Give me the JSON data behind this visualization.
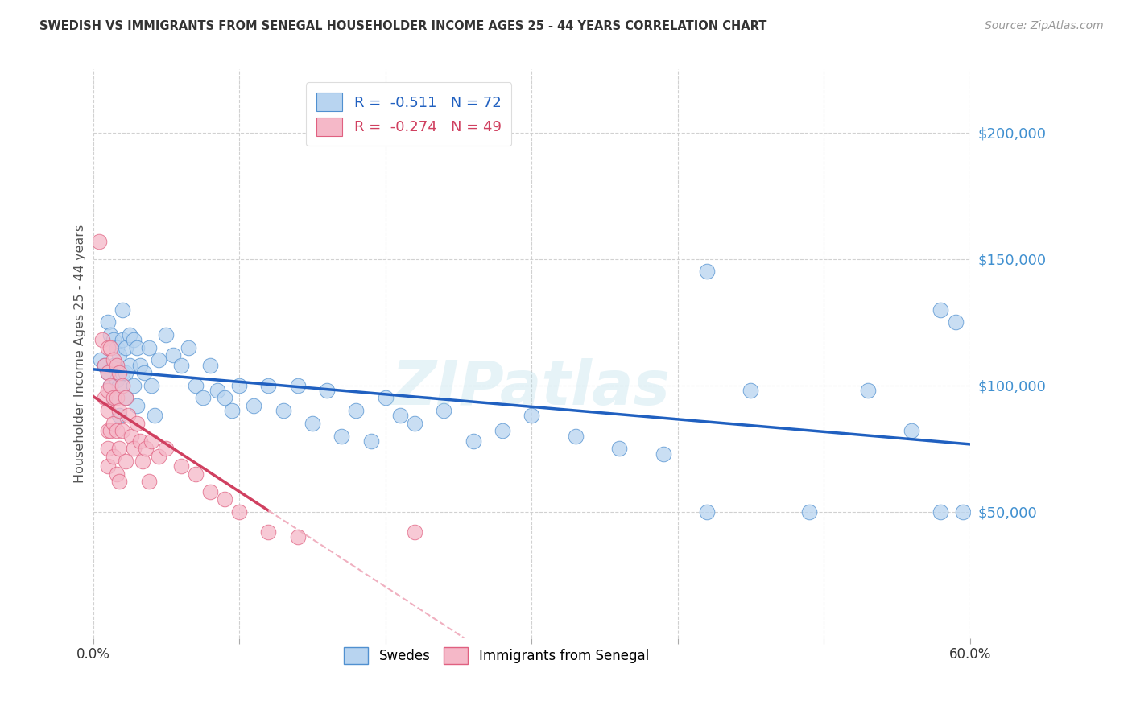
{
  "title": "SWEDISH VS IMMIGRANTS FROM SENEGAL HOUSEHOLDER INCOME AGES 25 - 44 YEARS CORRELATION CHART",
  "source": "Source: ZipAtlas.com",
  "ylabel": "Householder Income Ages 25 - 44 years",
  "xlim": [
    0.0,
    0.6
  ],
  "ylim": [
    0,
    225000
  ],
  "yticks": [
    50000,
    100000,
    150000,
    200000
  ],
  "ytick_labels": [
    "$50,000",
    "$100,000",
    "$150,000",
    "$200,000"
  ],
  "xticks": [
    0.0,
    0.1,
    0.2,
    0.3,
    0.4,
    0.5,
    0.6
  ],
  "swedes_color": "#b8d4f0",
  "senegal_color": "#f5b8c8",
  "swedes_edge_color": "#5090d0",
  "senegal_edge_color": "#e06080",
  "swedes_line_color": "#2060c0",
  "senegal_line_color": "#d04060",
  "senegal_dashed_color": "#f0b0c0",
  "watermark": "ZIPatlas",
  "ytick_color": "#4090d0",
  "grid_color": "#cccccc",
  "swedes_x": [
    0.005,
    0.008,
    0.01,
    0.01,
    0.012,
    0.012,
    0.014,
    0.014,
    0.014,
    0.016,
    0.016,
    0.018,
    0.018,
    0.018,
    0.02,
    0.02,
    0.02,
    0.022,
    0.022,
    0.022,
    0.025,
    0.025,
    0.028,
    0.028,
    0.03,
    0.03,
    0.032,
    0.035,
    0.038,
    0.04,
    0.042,
    0.045,
    0.05,
    0.055,
    0.06,
    0.065,
    0.07,
    0.075,
    0.08,
    0.085,
    0.09,
    0.095,
    0.1,
    0.11,
    0.12,
    0.13,
    0.14,
    0.15,
    0.16,
    0.17,
    0.18,
    0.19,
    0.2,
    0.21,
    0.22,
    0.24,
    0.26,
    0.28,
    0.3,
    0.33,
    0.36,
    0.39,
    0.42,
    0.45,
    0.49,
    0.53,
    0.56,
    0.58,
    0.59,
    0.595,
    0.42,
    0.58
  ],
  "swedes_y": [
    110000,
    108000,
    125000,
    105000,
    120000,
    100000,
    118000,
    108000,
    95000,
    115000,
    102000,
    112000,
    100000,
    88000,
    130000,
    118000,
    105000,
    115000,
    105000,
    95000,
    120000,
    108000,
    118000,
    100000,
    115000,
    92000,
    108000,
    105000,
    115000,
    100000,
    88000,
    110000,
    120000,
    112000,
    108000,
    115000,
    100000,
    95000,
    108000,
    98000,
    95000,
    90000,
    100000,
    92000,
    100000,
    90000,
    100000,
    85000,
    98000,
    80000,
    90000,
    78000,
    95000,
    88000,
    85000,
    90000,
    78000,
    82000,
    88000,
    80000,
    75000,
    73000,
    145000,
    98000,
    50000,
    98000,
    82000,
    50000,
    125000,
    50000,
    50000,
    130000
  ],
  "senegal_x": [
    0.004,
    0.006,
    0.008,
    0.008,
    0.01,
    0.01,
    0.01,
    0.01,
    0.01,
    0.01,
    0.01,
    0.012,
    0.012,
    0.012,
    0.014,
    0.014,
    0.014,
    0.014,
    0.016,
    0.016,
    0.016,
    0.016,
    0.018,
    0.018,
    0.018,
    0.018,
    0.02,
    0.02,
    0.022,
    0.022,
    0.024,
    0.026,
    0.028,
    0.03,
    0.032,
    0.034,
    0.036,
    0.038,
    0.04,
    0.045,
    0.05,
    0.06,
    0.07,
    0.08,
    0.09,
    0.1,
    0.12,
    0.14,
    0.22
  ],
  "senegal_y": [
    157000,
    118000,
    108000,
    95000,
    115000,
    105000,
    98000,
    90000,
    82000,
    75000,
    68000,
    115000,
    100000,
    82000,
    110000,
    95000,
    85000,
    72000,
    108000,
    95000,
    82000,
    65000,
    105000,
    90000,
    75000,
    62000,
    100000,
    82000,
    95000,
    70000,
    88000,
    80000,
    75000,
    85000,
    78000,
    70000,
    75000,
    62000,
    78000,
    72000,
    75000,
    68000,
    65000,
    58000,
    55000,
    50000,
    42000,
    40000,
    42000
  ]
}
